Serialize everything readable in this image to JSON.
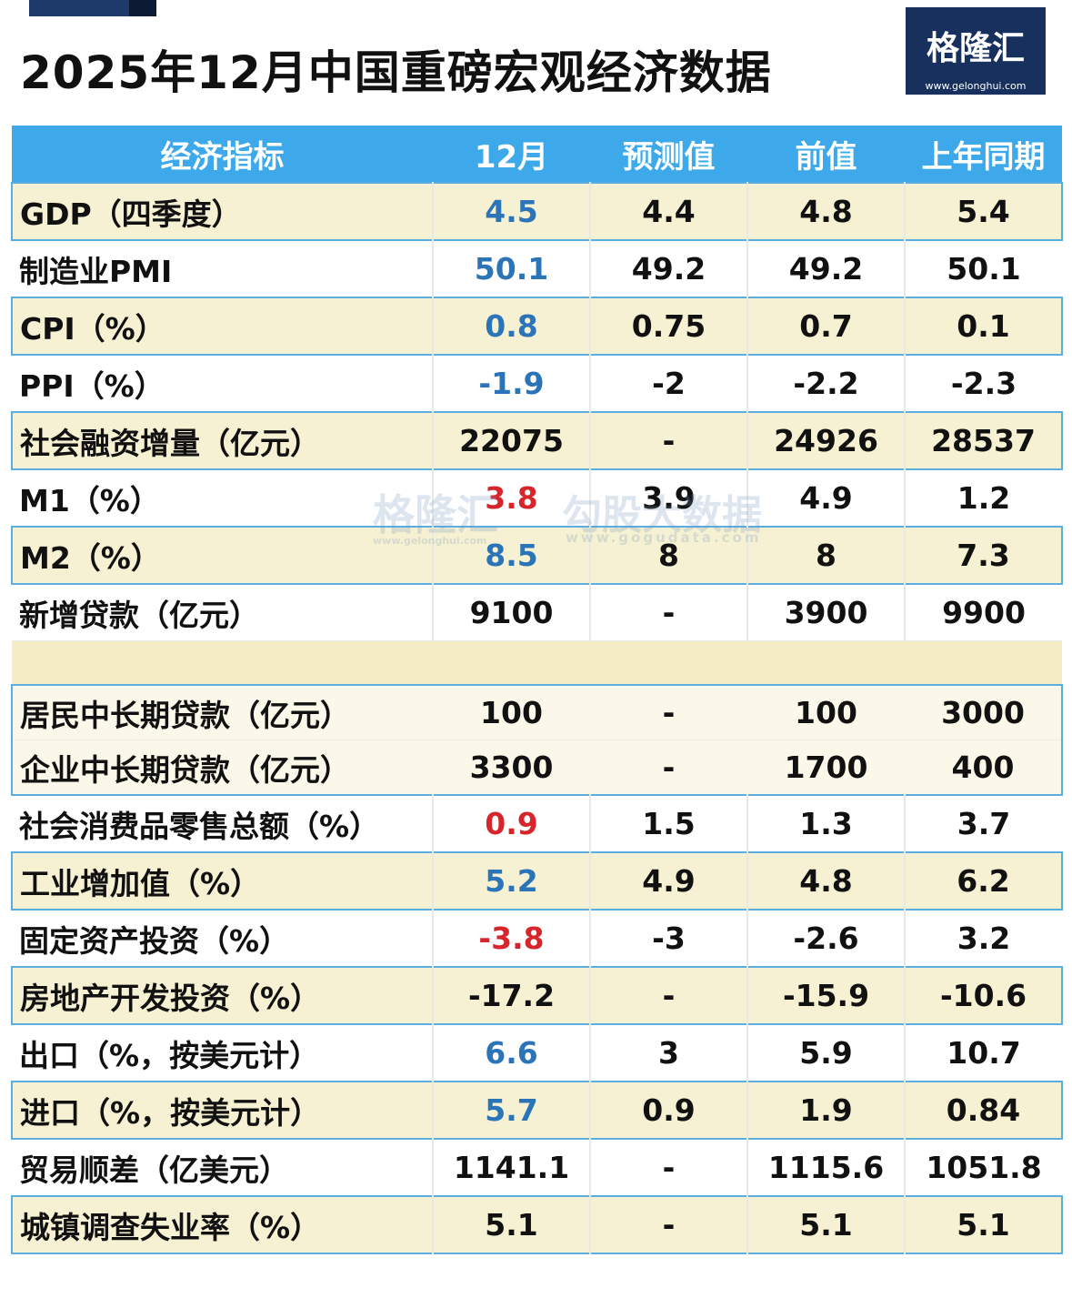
{
  "header": {
    "title": "2025年12月中国重磅宏观经济数据",
    "logo": "格隆汇",
    "logo_url": "www.gelonghui.com"
  },
  "watermark": {
    "brand": "格隆汇",
    "brand_url": "www.gelonghui.com",
    "partner": "勾股大数据",
    "partner_url": "www.gogudata.com"
  },
  "table": {
    "columns": [
      "经济指标",
      "12月",
      "预测值",
      "前值",
      "上年同期"
    ],
    "sections": [
      {
        "rows": [
          {
            "background": "#f6f1d2",
            "current_color": "#2b74b8",
            "cells": [
              "GDP（四季度）",
              "4.5",
              "4.4",
              "4.8",
              "5.4"
            ]
          },
          {
            "background": "#ffffff",
            "current_color": "#2b74b8",
            "cells": [
              "制造业PMI",
              "50.1",
              "49.2",
              "49.2",
              "50.1"
            ]
          },
          {
            "background": "#f6f1d2",
            "current_color": "#2b74b8",
            "cells": [
              "CPI（%）",
              "0.8",
              "0.75",
              "0.7",
              "0.1"
            ]
          },
          {
            "background": "#ffffff",
            "current_color": "#2b74b8",
            "cells": [
              "PPI（%）",
              "-1.9",
              "-2",
              "-2.2",
              "-2.3"
            ]
          },
          {
            "background": "#f6f1d2",
            "current_color": "#111111",
            "cells": [
              "社会融资增量（亿元）",
              "22075",
              "-",
              "24926",
              "28537"
            ]
          },
          {
            "background": "#ffffff",
            "current_color": "#d7262b",
            "cells": [
              "M1（%）",
              "3.8",
              "3.9",
              "4.9",
              "1.2"
            ]
          },
          {
            "background": "#f6f1d2",
            "current_color": "#2b74b8",
            "cells": [
              "M2（%）",
              "8.5",
              "8",
              "8",
              "7.3"
            ]
          },
          {
            "background": "#ffffff",
            "current_color": "#111111",
            "cells": [
              "新增贷款（亿元）",
              "9100",
              "-",
              "3900",
              "9900"
            ]
          }
        ]
      },
      {
        "rows": [
          {
            "background": "#fbf8ea",
            "current_color": "#111111",
            "cells": [
              "居民中长期贷款（亿元）",
              "100",
              "-",
              "100",
              "3000"
            ]
          },
          {
            "background": "#fbf8ea",
            "current_color": "#111111",
            "cells": [
              "企业中长期贷款（亿元）",
              "3300",
              "-",
              "1700",
              "400"
            ]
          }
        ]
      },
      {
        "rows": [
          {
            "background": "#ffffff",
            "current_color": "#d7262b",
            "cells": [
              "社会消费品零售总额（%）",
              "0.9",
              "1.5",
              "1.3",
              "3.7"
            ]
          },
          {
            "background": "#f6f1d2",
            "current_color": "#2b74b8",
            "cells": [
              "工业增加值（%）",
              "5.2",
              "4.9",
              "4.8",
              "6.2"
            ]
          },
          {
            "background": "#ffffff",
            "current_color": "#d7262b",
            "cells": [
              "固定资产投资（%）",
              "-3.8",
              "-3",
              "-2.6",
              "3.2"
            ]
          },
          {
            "background": "#f6f1d2",
            "current_color": "#111111",
            "cells": [
              "房地产开发投资（%）",
              "-17.2",
              "-",
              "-15.9",
              "-10.6"
            ]
          },
          {
            "background": "#ffffff",
            "current_color": "#2b74b8",
            "cells": [
              "出口（%，按美元计）",
              "6.6",
              "3",
              "5.9",
              "10.7"
            ]
          },
          {
            "background": "#f6f1d2",
            "current_color": "#2b74b8",
            "cells": [
              "进口（%，按美元计）",
              "5.7",
              "0.9",
              "1.9",
              "0.84"
            ]
          },
          {
            "background": "#ffffff",
            "current_color": "#111111",
            "cells": [
              "贸易顺差（亿美元）",
              "1141.1",
              "-",
              "1115.6",
              "1051.8"
            ]
          },
          {
            "background": "#f6f1d2",
            "current_color": "#111111",
            "cells": [
              "城镇调查失业率（%）",
              "5.1",
              "-",
              "5.1",
              "5.1"
            ]
          }
        ]
      }
    ]
  }
}
